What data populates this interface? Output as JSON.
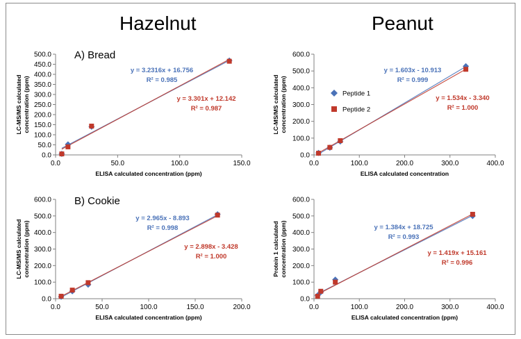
{
  "column_titles": {
    "left": "Hazelnut",
    "right": "Peanut"
  },
  "colors": {
    "series1": "#4a72b8",
    "series2": "#c0392b",
    "axis": "#808080"
  },
  "chart_data": [
    {
      "id": "hazelnut-bread",
      "type": "scatter",
      "panel_label": "A) Bread",
      "xlabel": "ELISA calculated concentration (ppm)",
      "ylabel": "LC-MS/MS calculated concentration (ppm)",
      "xlim": [
        0,
        150
      ],
      "ylim": [
        0,
        500
      ],
      "xticks": [
        "0.0",
        "50.0",
        "100.0",
        "150.0"
      ],
      "yticks": [
        "0.0",
        "50.0",
        "100.0",
        "150.0",
        "200.0",
        "250.0",
        "300.0",
        "350.0",
        "400.0",
        "450.0",
        "500.0"
      ],
      "legend": [],
      "series": [
        {
          "name": "Peptide 1",
          "marker": "diamond",
          "x": [
            5,
            10,
            29,
            140
          ],
          "y": [
            5,
            52,
            140,
            468
          ],
          "fit": {
            "slope": 3.2316,
            "intercept": 16.756
          },
          "equation": "y = 3.2316x + 16.756",
          "r2": "R² = 0.985"
        },
        {
          "name": "Peptide 2",
          "marker": "square",
          "x": [
            5,
            10,
            29,
            140
          ],
          "y": [
            5,
            40,
            143,
            465
          ],
          "fit": {
            "slope": 3.301,
            "intercept": 12.142
          },
          "equation": "y = 3.301x + 12.142",
          "r2": "R² = 0.987"
        }
      ]
    },
    {
      "id": "peanut-bread",
      "type": "scatter",
      "panel_label": "",
      "xlabel": "ELISA calculated concentration",
      "ylabel": "LC-MS/MS calculated concentration (ppm)",
      "xlim": [
        0,
        400
      ],
      "ylim": [
        0,
        600
      ],
      "xticks": [
        "0.0",
        "100.0",
        "200.0",
        "300.0",
        "400.0"
      ],
      "yticks": [
        "0.0",
        "100.0",
        "200.0",
        "300.0",
        "400.0",
        "500.0",
        "600.0"
      ],
      "legend": [
        "Peptide 1",
        "Peptide 2"
      ],
      "series": [
        {
          "name": "Peptide 1",
          "marker": "diamond",
          "x": [
            10,
            35,
            58,
            335
          ],
          "y": [
            12,
            43,
            80,
            528
          ],
          "fit": {
            "slope": 1.603,
            "intercept": -10.913
          },
          "equation": "y = 1.603x - 10.913",
          "r2": "R² = 0.999"
        },
        {
          "name": "Peptide 2",
          "marker": "square",
          "x": [
            10,
            35,
            58,
            335
          ],
          "y": [
            10,
            45,
            85,
            510
          ],
          "fit": {
            "slope": 1.534,
            "intercept": -3.34
          },
          "equation": "y = 1.534x - 3.340",
          "r2": "R² = 1.000"
        }
      ]
    },
    {
      "id": "hazelnut-cookie",
      "type": "scatter",
      "panel_label": "B) Cookie",
      "xlabel": "ELISA calculated concentration (ppm)",
      "ylabel": "LC-MS/MS calculated concentration (ppm)",
      "xlim": [
        0,
        200
      ],
      "ylim": [
        0,
        600
      ],
      "xticks": [
        "0.0",
        "50.0",
        "100.0",
        "150.0",
        "200.0"
      ],
      "yticks": [
        "0.0",
        "100.0",
        "200.0",
        "300.0",
        "400.0",
        "500.0",
        "600.0"
      ],
      "legend": [],
      "series": [
        {
          "name": "Peptide 1",
          "marker": "diamond",
          "x": [
            6,
            18,
            35,
            174
          ],
          "y": [
            12,
            45,
            85,
            510
          ],
          "fit": {
            "slope": 2.965,
            "intercept": -8.893
          },
          "equation": "y = 2.965x - 8.893",
          "r2": "R² = 0.998"
        },
        {
          "name": "Peptide 2",
          "marker": "square",
          "x": [
            6,
            18,
            35,
            174
          ],
          "y": [
            15,
            52,
            97,
            505
          ],
          "fit": {
            "slope": 2.898,
            "intercept": -3.428
          },
          "equation": "y = 2.898x - 3.428",
          "r2": "R² = 1.000"
        }
      ]
    },
    {
      "id": "peanut-cookie",
      "type": "scatter",
      "panel_label": "",
      "xlabel": "ELISA calculated concentration (ppm)",
      "ylabel": "Protein 1 calculated concentration (ppm)",
      "xlim": [
        0,
        400
      ],
      "ylim": [
        0,
        600
      ],
      "xticks": [
        "0.0",
        "100.0",
        "200.0",
        "300.0",
        "400.0"
      ],
      "yticks": [
        "0.0",
        "100.0",
        "200.0",
        "300.0",
        "400.0",
        "500.0",
        "600.0"
      ],
      "legend": [],
      "series": [
        {
          "name": "Peptide 1",
          "marker": "diamond",
          "x": [
            8,
            15,
            47,
            350
          ],
          "y": [
            20,
            40,
            115,
            500
          ],
          "fit": {
            "slope": 1.384,
            "intercept": 18.725
          },
          "equation": "y = 1.384x + 18.725",
          "r2": "R² = 0.993"
        },
        {
          "name": "Peptide 2",
          "marker": "square",
          "x": [
            8,
            15,
            47,
            350
          ],
          "y": [
            15,
            45,
            100,
            510
          ],
          "fit": {
            "slope": 1.419,
            "intercept": 15.161
          },
          "equation": "y = 1.419x + 15.161",
          "r2": "R² = 0.996"
        }
      ]
    }
  ]
}
